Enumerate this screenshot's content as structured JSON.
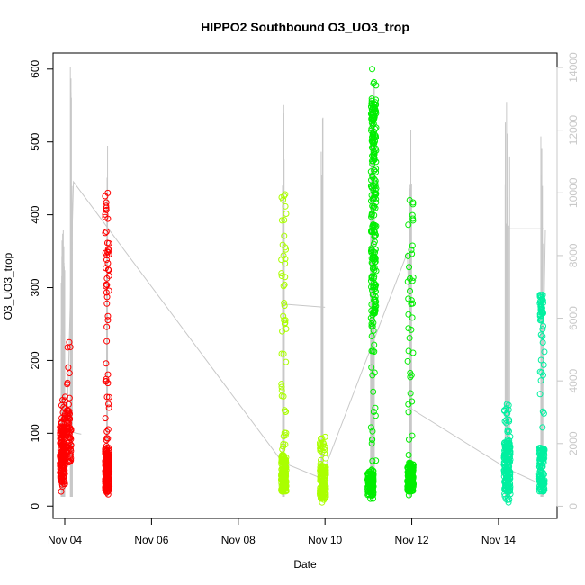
{
  "chart_data": {
    "type": "scatter",
    "title": "HIPPO2 Southbound O3_UO3_trop",
    "xlabel": "Date",
    "ylabel": "O3_UO3_trop",
    "x_unit": "days in November",
    "xlim": [
      3.73,
      15.35
    ],
    "ylim": [
      -17,
      622
    ],
    "y2lim": [
      -390,
      14460
    ],
    "x_ticks": [
      4,
      6,
      8,
      10,
      12,
      14
    ],
    "x_tick_labels": [
      "Nov 04",
      "Nov 06",
      "Nov 08",
      "Nov 10",
      "Nov 12",
      "Nov 14"
    ],
    "y_ticks": [
      0,
      100,
      200,
      300,
      400,
      500,
      600
    ],
    "y_tick_labels": [
      "0",
      "100",
      "200",
      "300",
      "400",
      "500",
      "600"
    ],
    "y2_ticks": [
      0,
      2000,
      4000,
      6000,
      8000,
      10000,
      12000,
      14000
    ],
    "y2_tick_labels": [
      "0",
      "2000",
      "4000",
      "6000",
      "8000",
      "10000",
      "12000",
      "14000"
    ],
    "secondary_color": "#c8c8c8",
    "series": [
      {
        "color": "#ff0000",
        "clusters": [
          {
            "x": 3.95,
            "w": 0.12,
            "lo": 20,
            "hi": 150,
            "core_lo": 30,
            "core_hi": 110,
            "n": 180
          },
          {
            "x": 4.1,
            "w": 0.1,
            "lo": 60,
            "hi": 225,
            "core_lo": 60,
            "core_hi": 140,
            "n": 70
          },
          {
            "x": 4.98,
            "w": 0.1,
            "lo": 16,
            "hi": 430,
            "core_lo": 20,
            "core_hi": 80,
            "n": 240
          }
        ]
      },
      {
        "color": "#aaff00",
        "clusters": [
          {
            "x": 9.05,
            "w": 0.12,
            "lo": 20,
            "hi": 428,
            "core_lo": 20,
            "core_hi": 70,
            "n": 200
          },
          {
            "x": 9.95,
            "w": 0.14,
            "lo": 5,
            "hi": 95,
            "core_lo": 10,
            "core_hi": 55,
            "n": 150
          }
        ]
      },
      {
        "color": "#00ee00",
        "clusters": [
          {
            "x": 11.05,
            "w": 0.14,
            "lo": 10,
            "hi": 50,
            "core_lo": 15,
            "core_hi": 45,
            "n": 120
          },
          {
            "x": 11.12,
            "w": 0.12,
            "lo": 15,
            "hi": 600,
            "core_lo": 250,
            "core_hi": 560,
            "n": 260
          },
          {
            "x": 11.97,
            "w": 0.14,
            "lo": 15,
            "hi": 420,
            "core_lo": 20,
            "core_hi": 60,
            "n": 200
          }
        ]
      },
      {
        "color": "#00f0a0",
        "clusters": [
          {
            "x": 14.2,
            "w": 0.15,
            "lo": 5,
            "hi": 140,
            "core_lo": 20,
            "core_hi": 90,
            "n": 180
          },
          {
            "x": 15.0,
            "w": 0.12,
            "lo": 20,
            "hi": 290,
            "core_lo": 20,
            "core_hi": 80,
            "n": 130
          },
          {
            "x": 14.99,
            "w": 0.08,
            "lo": 255,
            "hi": 290,
            "core_lo": 255,
            "core_hi": 290,
            "n": 40
          }
        ]
      }
    ],
    "altitude_spikes": [
      {
        "x": 3.95,
        "w": 0.1,
        "hi": 8800,
        "n": 20
      },
      {
        "x": 4.15,
        "w": 0.08,
        "hi": 14000,
        "n": 10
      },
      {
        "x": 4.99,
        "w": 0.05,
        "hi": 11500,
        "n": 6
      },
      {
        "x": 9.05,
        "w": 0.06,
        "hi": 12800,
        "n": 8
      },
      {
        "x": 9.92,
        "w": 0.08,
        "hi": 12400,
        "n": 8
      },
      {
        "x": 11.1,
        "w": 0.1,
        "hi": 13500,
        "n": 14
      },
      {
        "x": 11.97,
        "w": 0.06,
        "hi": 12000,
        "n": 8
      },
      {
        "x": 14.2,
        "w": 0.12,
        "hi": 12900,
        "n": 10
      },
      {
        "x": 15.0,
        "w": 0.06,
        "hi": 11800,
        "n": 8
      }
    ],
    "altitude_lines": [
      {
        "x": [
          3.94,
          4.05,
          4.2,
          9.02,
          9.9,
          10.02,
          11.9,
          12.0,
          14.2,
          14.98,
          15.08
        ],
        "y": [
          2500,
          2400,
          10350,
          1400,
          900,
          1300,
          8100,
          3100,
          1200,
          700,
          8800
        ]
      },
      {
        "x": [
          4.05,
          4.38
        ],
        "y": [
          2400,
          2300
        ]
      },
      {
        "x": [
          9.05,
          10.0
        ],
        "y": [
          6450,
          6350
        ]
      },
      {
        "x": [
          11.9,
          12.1
        ],
        "y": [
          7250,
          7200
        ]
      },
      {
        "x": [
          14.23,
          15.05
        ],
        "y": [
          8850,
          8850
        ]
      }
    ]
  }
}
